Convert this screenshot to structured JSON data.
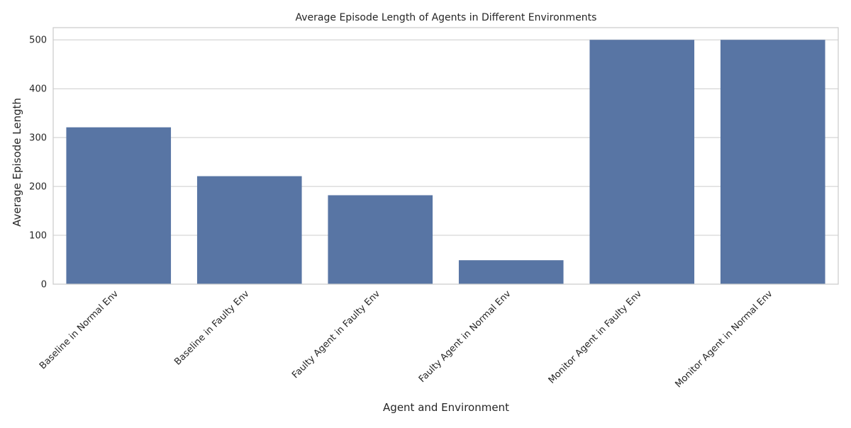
{
  "chart_data": {
    "type": "bar",
    "title": "Average Episode Length of Agents in Different Environments",
    "xlabel": "Agent and Environment",
    "ylabel": "Average Episode Length",
    "categories": [
      "Baseline in Normal Env",
      "Baseline in Faulty Env",
      "Faulty Agent in Faulty Env",
      "Faulty Agent in Normal Env",
      "Monitor Agent in Faulty Env",
      "Monitor Agent in Normal Env"
    ],
    "values": [
      321,
      221,
      182,
      49,
      500,
      500
    ],
    "ylim": [
      0,
      525
    ],
    "yticks": [
      0,
      100,
      200,
      300,
      400,
      500
    ],
    "grid": true,
    "bar_color": "#5875a4",
    "grid_color": "#cccccc",
    "spine_color": "#cccccc"
  }
}
